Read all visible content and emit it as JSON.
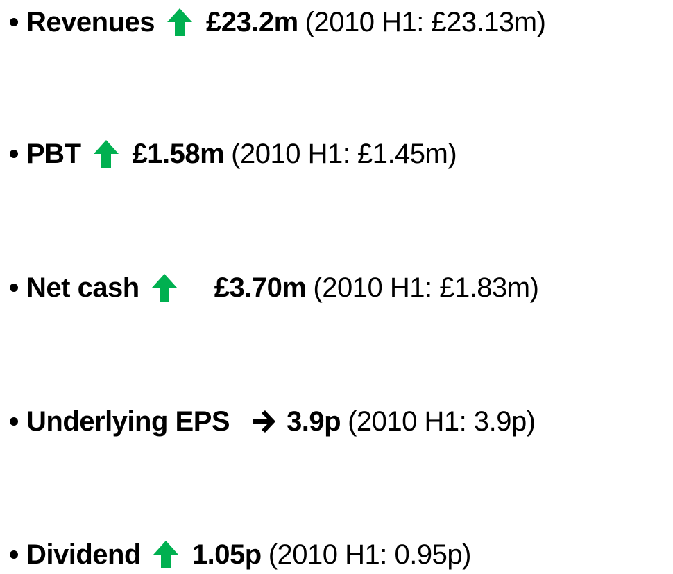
{
  "items": [
    {
      "label": "Revenues",
      "value": "£23.2m",
      "comparison": "(2010 H1: £23.13m)"
    },
    {
      "label": "PBT",
      "value": "£1.58m",
      "comparison": "(2010 H1: £1.45m)"
    },
    {
      "label": "Net cash",
      "value": "£3.70m",
      "comparison": "(2010 H1: £1.83m)"
    },
    {
      "label": "Underlying EPS",
      "value": "3.9p",
      "comparison": "(2010 H1: 3.9p)"
    },
    {
      "label": "Dividend",
      "value": "1.05p",
      "comparison": "(2010 H1: 0.95p)"
    }
  ]
}
